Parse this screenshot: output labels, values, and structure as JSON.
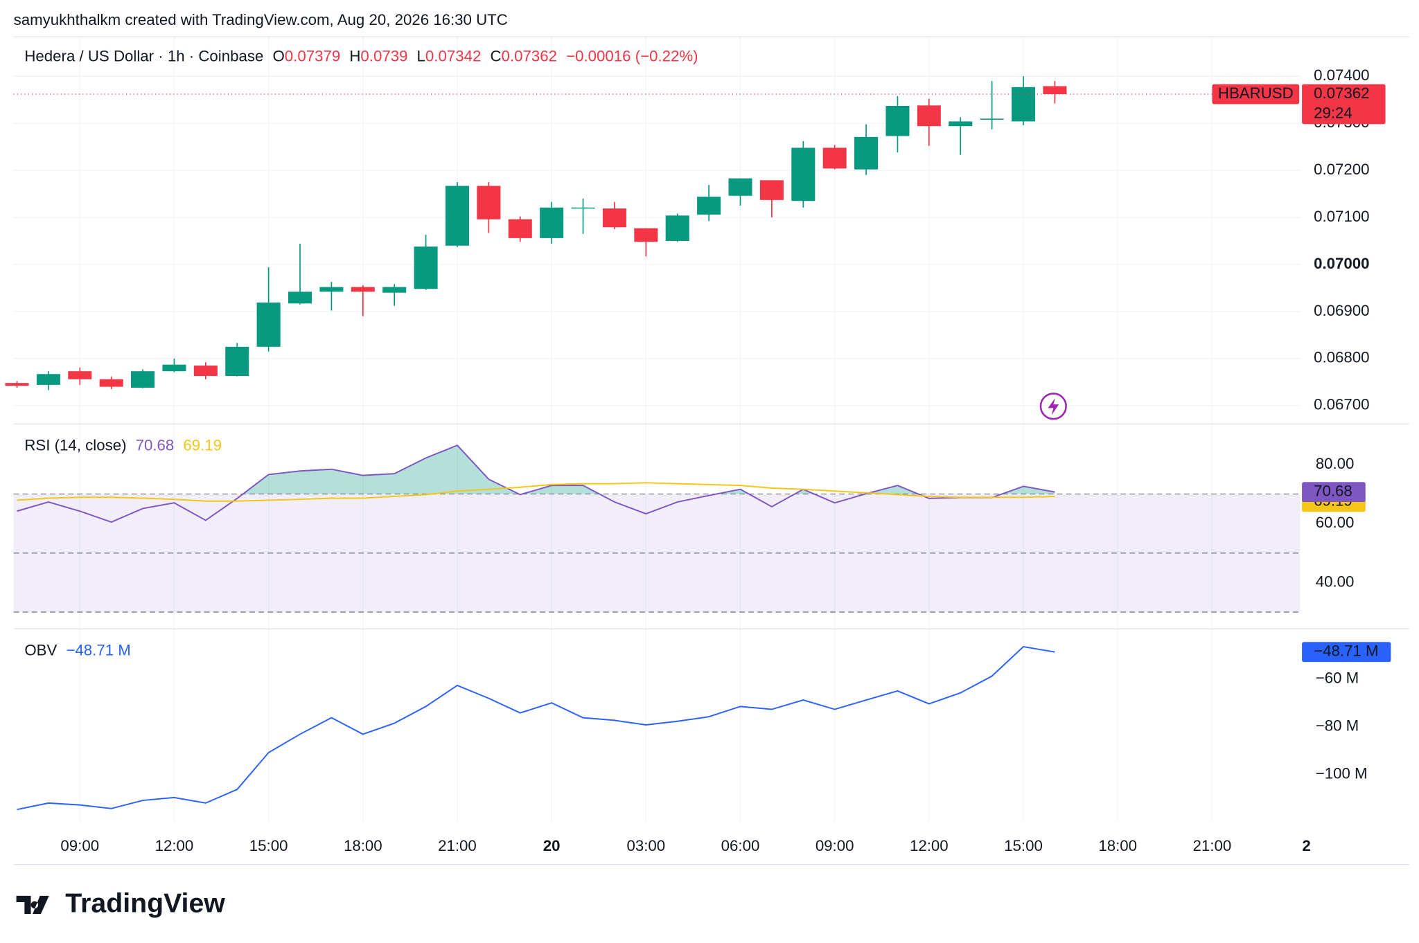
{
  "header": {
    "credit": "samyukhthalkm created with TradingView.com, Aug 20, 2026 16:30 UTC"
  },
  "logo": "TradingView",
  "chart_data": [
    {
      "type": "candlestick",
      "title": "Hedera / US Dollar · 1h · Coinbase",
      "symbol": "HBARUSD",
      "countdown": "29:24",
      "ohlc_labels": [
        "O",
        "H",
        "L",
        "C"
      ],
      "change": "−0.00016 (−0.22%)",
      "open": [
        0.06748,
        0.06744,
        0.06773,
        0.06756,
        0.06738,
        0.06773,
        0.06785,
        0.06763,
        0.06825,
        0.06917,
        0.06942,
        0.06952,
        0.0694,
        0.06948,
        0.0704,
        0.07167,
        0.07096,
        0.07056,
        0.07119,
        0.07119,
        0.07077,
        0.0705,
        0.07106,
        0.07146,
        0.07179,
        0.07135,
        0.07248,
        0.07202,
        0.07273,
        0.07338,
        0.07294,
        0.07308,
        0.07304,
        0.07379
      ],
      "high": [
        0.06752,
        0.06773,
        0.06781,
        0.06762,
        0.06777,
        0.068,
        0.06792,
        0.06833,
        0.06994,
        0.07044,
        0.06963,
        0.06956,
        0.06958,
        0.07063,
        0.07175,
        0.07175,
        0.07102,
        0.07133,
        0.0714,
        0.07133,
        0.07077,
        0.07108,
        0.07169,
        0.07183,
        0.07179,
        0.07262,
        0.07254,
        0.07298,
        0.07358,
        0.07352,
        0.07313,
        0.0739,
        0.074,
        0.0739
      ],
      "low": [
        0.06738,
        0.06733,
        0.06744,
        0.06735,
        0.06737,
        0.06771,
        0.06756,
        0.06762,
        0.06815,
        0.06915,
        0.06902,
        0.0689,
        0.06912,
        0.06946,
        0.07037,
        0.07067,
        0.07048,
        0.07044,
        0.07065,
        0.07075,
        0.07017,
        0.07048,
        0.07092,
        0.07125,
        0.071,
        0.07121,
        0.07202,
        0.0719,
        0.07238,
        0.07252,
        0.07233,
        0.07287,
        0.07296,
        0.07342
      ],
      "close": [
        0.06742,
        0.06767,
        0.06756,
        0.0674,
        0.06773,
        0.06787,
        0.06763,
        0.06825,
        0.06919,
        0.06942,
        0.06952,
        0.06942,
        0.06952,
        0.07038,
        0.07167,
        0.07096,
        0.07056,
        0.07121,
        0.07121,
        0.07079,
        0.07048,
        0.07104,
        0.07144,
        0.07183,
        0.07137,
        0.07248,
        0.07204,
        0.07271,
        0.07337,
        0.07294,
        0.07304,
        0.0731,
        0.07377,
        0.07362
      ],
      "up_color": "#089981",
      "down_color": "#f23645",
      "ylim": [
        0.06662,
        0.07483
      ],
      "yticks": [
        {
          "value": 0.067,
          "label": "0.06700"
        },
        {
          "value": 0.068,
          "label": "0.06800"
        },
        {
          "value": 0.069,
          "label": "0.06900"
        },
        {
          "value": 0.07,
          "label": "0.07000"
        },
        {
          "value": 0.071,
          "label": "0.07100"
        },
        {
          "value": 0.072,
          "label": "0.07200"
        },
        {
          "value": 0.073,
          "label": "0.07300"
        },
        {
          "value": 0.074,
          "label": "0.07400"
        }
      ],
      "xlim": [
        -0.107,
        40.8
      ],
      "xticks": [
        {
          "value": 2,
          "label": "09:00"
        },
        {
          "value": 5,
          "label": "12:00"
        },
        {
          "value": 8,
          "label": "15:00"
        },
        {
          "value": 11,
          "label": "18:00"
        },
        {
          "value": 14,
          "label": "21:00"
        },
        {
          "value": 17,
          "label": "20"
        },
        {
          "value": 20,
          "label": "03:00"
        },
        {
          "value": 23,
          "label": "06:00"
        },
        {
          "value": 26,
          "label": "09:00"
        },
        {
          "value": 29,
          "label": "12:00"
        },
        {
          "value": 32,
          "label": "15:00"
        },
        {
          "value": 35,
          "label": "18:00"
        },
        {
          "value": 38,
          "label": "21:00"
        },
        {
          "value": 41,
          "label": "2"
        }
      ],
      "grid": true
    },
    {
      "type": "line",
      "title": "RSI (14, close)",
      "series": [
        {
          "color": "#7e57c2",
          "values": [
            64.2,
            67.3,
            64.2,
            60.5,
            65.1,
            67.0,
            61.1,
            68.5,
            76.6,
            77.8,
            78.4,
            76.3,
            76.9,
            82.2,
            86.5,
            75.0,
            69.8,
            72.9,
            72.9,
            67.3,
            63.3,
            67.3,
            69.5,
            71.6,
            65.7,
            71.6,
            67.0,
            70.1,
            72.9,
            68.5,
            68.8,
            68.8,
            72.6,
            70.68
          ]
        },
        {
          "color": "#f5c518",
          "values": [
            67.9,
            68.6,
            68.9,
            68.9,
            68.6,
            68.2,
            67.6,
            67.6,
            67.9,
            68.2,
            68.6,
            68.6,
            69.2,
            69.8,
            71.0,
            71.6,
            72.3,
            73.2,
            73.5,
            73.5,
            73.8,
            73.5,
            73.2,
            72.9,
            72.0,
            71.6,
            71.0,
            70.4,
            69.8,
            69.2,
            68.9,
            68.9,
            68.9,
            69.19
          ]
        }
      ],
      "bands": [
        70,
        50,
        30
      ],
      "band_color": "#7e57c2",
      "overbought_color": "#089981",
      "ylim": [
        24.8,
        93.6
      ],
      "yticks": [
        {
          "value": 40,
          "label": "40.00"
        },
        {
          "value": 60,
          "label": "60.00"
        },
        {
          "value": 80,
          "label": "80.00"
        }
      ]
    },
    {
      "type": "line",
      "title": "OBV",
      "series": [
        {
          "color": "#2962ff",
          "values": [
            -114.6,
            -111.9,
            -112.7,
            -114.2,
            -110.8,
            -109.6,
            -111.9,
            -106.2,
            -90.8,
            -83.1,
            -76.2,
            -83.1,
            -78.5,
            -71.5,
            -62.7,
            -68.1,
            -74.2,
            -70.0,
            -76.2,
            -77.3,
            -79.2,
            -77.7,
            -75.8,
            -71.5,
            -72.7,
            -68.8,
            -72.7,
            -68.8,
            -65.0,
            -70.4,
            -65.8,
            -58.8,
            -46.5,
            -48.71
          ],
          "value_labels": [
            null,
            null,
            null,
            null,
            null,
            null,
            null,
            null,
            null,
            null,
            null,
            null,
            null,
            null,
            null,
            null,
            null,
            null,
            null,
            null,
            null,
            null,
            null,
            null,
            null,
            null,
            null,
            null,
            null,
            null,
            null,
            null,
            null,
            "−48.71 M"
          ]
        }
      ],
      "ylim": [
        -119.6,
        -39.2
      ],
      "yticks": [
        {
          "value": -100,
          "label": "−100 M"
        },
        {
          "value": -80,
          "label": "−80 M"
        },
        {
          "value": -60,
          "label": "−60 M"
        }
      ]
    }
  ]
}
